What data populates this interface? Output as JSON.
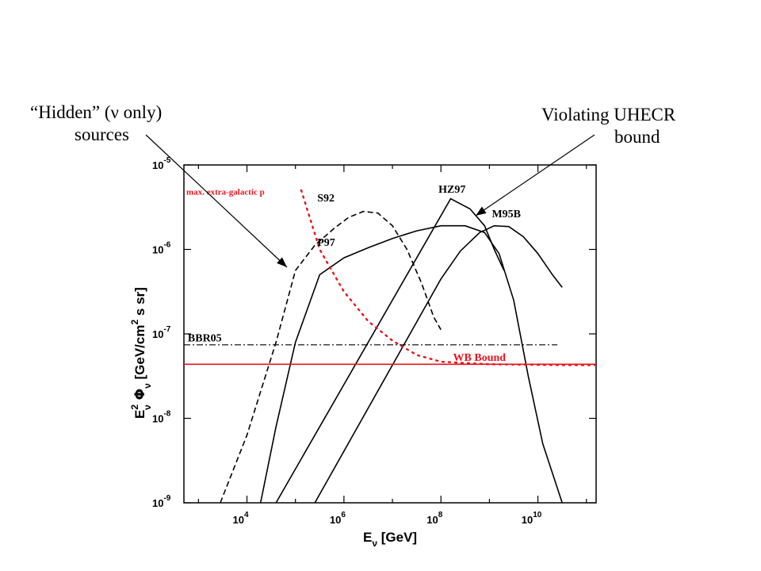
{
  "annotations": {
    "hidden": {
      "line1": "“Hidden” (ν only)",
      "line2": "sources"
    },
    "violating": {
      "line1": "Violating UHECR",
      "line2": "bound"
    }
  },
  "chart_data": {
    "type": "line",
    "xlabel": {
      "main": "E",
      "sub": "ν",
      "unit": " [GeV]"
    },
    "ylabel": {
      "main": "E",
      "sup": "2",
      "sub": "ν",
      "phi": " Φ",
      "phisub": "ν",
      "unit": "  [GeV/cm",
      "unitsup": "2",
      "unitend": " s sr]"
    },
    "x_log_range": [
      2.7,
      11.2
    ],
    "y_log_range": [
      -9,
      -5
    ],
    "log_scale": true,
    "x_ticks": [
      {
        "base": "10",
        "exp": "4",
        "value": 4
      },
      {
        "base": "10",
        "exp": "6",
        "value": 6
      },
      {
        "base": "10",
        "exp": "8",
        "value": 8
      },
      {
        "base": "10",
        "exp": "10",
        "value": 10
      }
    ],
    "y_ticks": [
      {
        "base": "10",
        "exp": "-5",
        "value": -5
      },
      {
        "base": "10",
        "exp": "-6",
        "value": -6
      },
      {
        "base": "10",
        "exp": "-7",
        "value": -7
      },
      {
        "base": "10",
        "exp": "-8",
        "value": -8
      },
      {
        "base": "10",
        "exp": "-9",
        "value": -9
      }
    ],
    "series": [
      {
        "name": "S92",
        "style": "dashed",
        "color": "#000000",
        "label_at": [
          5.45,
          -5.43
        ],
        "points": [
          [
            3.45,
            -9
          ],
          [
            4.0,
            -8.2
          ],
          [
            4.6,
            -7.1
          ],
          [
            5.0,
            -6.25
          ],
          [
            5.4,
            -5.95
          ],
          [
            5.8,
            -5.75
          ],
          [
            6.1,
            -5.62
          ],
          [
            6.4,
            -5.55
          ],
          [
            6.7,
            -5.57
          ],
          [
            7.0,
            -5.72
          ],
          [
            7.3,
            -6.0
          ],
          [
            7.6,
            -6.4
          ],
          [
            7.85,
            -6.8
          ],
          [
            8.0,
            -6.95
          ]
        ]
      },
      {
        "name": "P97",
        "style": "solid",
        "color": "#000000",
        "label_at": [
          5.45,
          -5.96
        ],
        "points": [
          [
            4.28,
            -9
          ],
          [
            4.6,
            -8.1
          ],
          [
            5.0,
            -7.1
          ],
          [
            5.5,
            -6.3
          ],
          [
            6.0,
            -6.1
          ],
          [
            6.5,
            -5.98
          ],
          [
            7.0,
            -5.87
          ],
          [
            7.5,
            -5.78
          ],
          [
            8.0,
            -5.72
          ],
          [
            8.5,
            -5.72
          ],
          [
            8.9,
            -5.8
          ],
          [
            9.2,
            -6.05
          ],
          [
            9.5,
            -6.6
          ],
          [
            9.8,
            -7.5
          ],
          [
            10.1,
            -8.3
          ],
          [
            10.5,
            -9
          ]
        ]
      },
      {
        "name": "HZ97",
        "style": "solid",
        "color": "#000000",
        "label_at": [
          7.95,
          -5.33
        ],
        "points": [
          [
            4.6,
            -9
          ],
          [
            8.2,
            -5.4
          ],
          [
            8.6,
            -5.52
          ],
          [
            8.9,
            -5.72
          ],
          [
            9.1,
            -6.0
          ],
          [
            9.3,
            -6.25
          ]
        ]
      },
      {
        "name": "M95B",
        "style": "solid",
        "color": "#000000",
        "label_at": [
          9.05,
          -5.62
        ],
        "points": [
          [
            5.4,
            -9
          ],
          [
            8.0,
            -6.35
          ],
          [
            8.4,
            -6.02
          ],
          [
            8.8,
            -5.8
          ],
          [
            9.1,
            -5.72
          ],
          [
            9.4,
            -5.73
          ],
          [
            9.7,
            -5.85
          ],
          [
            10.0,
            -6.05
          ],
          [
            10.3,
            -6.3
          ],
          [
            10.5,
            -6.45
          ]
        ]
      },
      {
        "name": "max. extra-galactic p",
        "style": "dotted",
        "color": "#e8141c",
        "label_at": [
          2.75,
          -5.35
        ],
        "points": [
          [
            5.12,
            -5.3
          ],
          [
            5.5,
            -6.0
          ],
          [
            6.0,
            -6.5
          ],
          [
            6.5,
            -6.85
          ],
          [
            7.0,
            -7.08
          ],
          [
            7.5,
            -7.25
          ],
          [
            8.0,
            -7.33
          ],
          [
            9.0,
            -7.36
          ],
          [
            10.5,
            -7.37
          ],
          [
            11.2,
            -7.37
          ]
        ]
      },
      {
        "name": "WB Bound",
        "style": "solid",
        "color": "#e8141c",
        "label_at": [
          8.25,
          -7.32
        ],
        "points": [
          [
            2.7,
            -7.36
          ],
          [
            11.2,
            -7.36
          ]
        ]
      },
      {
        "name": "BBR05",
        "style": "dashdot",
        "color": "#000000",
        "label_at": [
          2.78,
          -7.09
        ],
        "points": [
          [
            2.7,
            -7.13
          ],
          [
            10.4,
            -7.13
          ]
        ]
      }
    ]
  }
}
